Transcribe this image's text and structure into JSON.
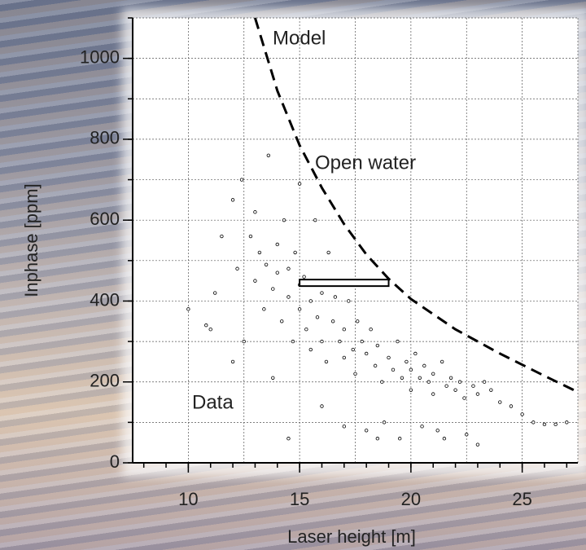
{
  "chart_data": {
    "type": "scatter",
    "xlabel": "Laser height [m]",
    "ylabel": "Inphase [ppm]",
    "annotations": [
      "Model",
      "Open water",
      "Data"
    ],
    "xlim": [
      7.5,
      27.5
    ],
    "ylim": [
      0,
      1100
    ],
    "xticks": [
      10,
      15,
      20,
      25
    ],
    "xminorticks": [
      8,
      9,
      10,
      11,
      12,
      13,
      14,
      15,
      16,
      17,
      18,
      19,
      20,
      21,
      22,
      23,
      24,
      25,
      26,
      27
    ],
    "xgrid": [
      7.5,
      10,
      12.5,
      15,
      17.5,
      20,
      22.5,
      25,
      27.5
    ],
    "yticks": [
      0,
      200,
      400,
      600,
      800,
      1000
    ],
    "ygrid": [
      0,
      100,
      200,
      300,
      400,
      500,
      600,
      700,
      800,
      900,
      1000,
      1100
    ],
    "grid": true,
    "series": [
      {
        "name": "Data",
        "color": "#000000",
        "x": [
          10,
          10.8,
          11.2,
          11.5,
          12,
          12.2,
          12.4,
          12.5,
          12.8,
          13,
          13,
          13.2,
          13.4,
          13.5,
          13.6,
          13.8,
          14,
          14,
          14.2,
          14.3,
          14.5,
          14.5,
          14.7,
          14.8,
          15,
          15,
          15,
          15.2,
          15.3,
          15.5,
          15.5,
          15.7,
          15.8,
          16,
          16,
          16.2,
          16.3,
          16.5,
          16.6,
          16.8,
          17,
          17,
          17,
          17.2,
          17.4,
          17.5,
          17.6,
          17.8,
          18,
          18,
          18.2,
          18.4,
          18.5,
          18.7,
          18.8,
          19,
          19.2,
          19.4,
          19.5,
          19.6,
          19.8,
          20,
          20,
          20.2,
          20.4,
          20.5,
          20.6,
          20.8,
          21,
          21,
          21.2,
          21.4,
          21.6,
          21.8,
          22,
          22.2,
          22.4,
          22.5,
          22.8,
          23,
          23.3,
          23.6,
          24,
          24.5,
          25,
          25.5,
          26,
          26.5,
          27,
          11,
          12,
          13.8,
          14.5,
          16,
          18.5,
          21.5,
          23
        ],
        "values": [
          380,
          340,
          420,
          560,
          650,
          480,
          700,
          300,
          560,
          620,
          450,
          520,
          380,
          490,
          760,
          430,
          540,
          470,
          350,
          600,
          480,
          410,
          300,
          520,
          440,
          380,
          690,
          460,
          330,
          400,
          280,
          600,
          360,
          420,
          300,
          250,
          520,
          350,
          410,
          300,
          330,
          260,
          90,
          400,
          280,
          220,
          350,
          300,
          270,
          80,
          330,
          240,
          290,
          200,
          100,
          260,
          230,
          300,
          60,
          210,
          250,
          230,
          180,
          270,
          210,
          90,
          240,
          200,
          220,
          170,
          80,
          250,
          190,
          210,
          180,
          200,
          160,
          70,
          190,
          170,
          200,
          180,
          150,
          140,
          120,
          100,
          95,
          95,
          100,
          330,
          250,
          210,
          60,
          140,
          60,
          60,
          45
        ]
      },
      {
        "name": "Model",
        "type": "line",
        "color": "#000000",
        "x": [
          13,
          14,
          15,
          16,
          17,
          18,
          19,
          20,
          22,
          24,
          26,
          27.5
        ],
        "values": [
          1100,
          920,
          785,
          680,
          590,
          515,
          455,
          405,
          330,
          270,
          215,
          175
        ]
      }
    ],
    "range_bar": {
      "x": [
        15,
        19
      ],
      "y": 445
    }
  }
}
